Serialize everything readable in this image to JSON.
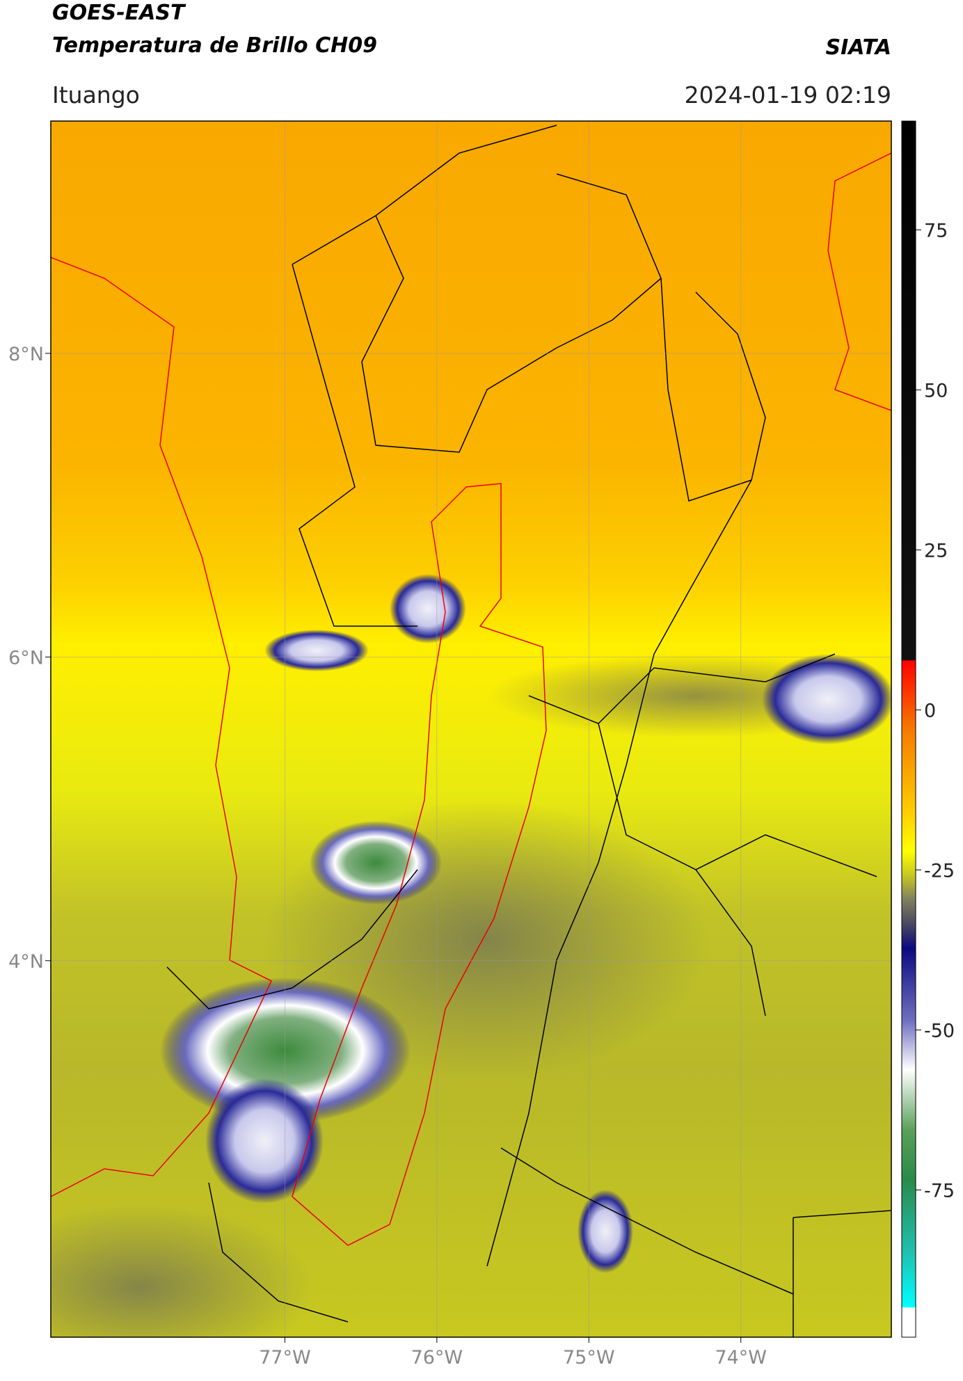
{
  "header": {
    "title": "GOES-EAST",
    "subtitle": "Temperatura de Brillo CH09",
    "source": "SIATA",
    "location": "Ituango",
    "datetime": "2024-01-19 02:19"
  },
  "map": {
    "lon_range": [
      -78.54,
      -73.01
    ],
    "lat_range": [
      1.52,
      9.53
    ],
    "lon_ticks": [
      {
        "value": -77,
        "label": "77°W"
      },
      {
        "value": -76,
        "label": "76°W"
      },
      {
        "value": -75,
        "label": "75°W"
      },
      {
        "value": -74,
        "label": "74°W"
      }
    ],
    "lat_ticks": [
      {
        "value": 8,
        "label": "8°N"
      },
      {
        "value": 6,
        "label": "6°N"
      },
      {
        "value": 4,
        "label": "4°N"
      }
    ],
    "grid": true
  },
  "colorbar": {
    "range": [
      -98,
      92
    ],
    "ticks": [
      75,
      50,
      25,
      0,
      -25,
      -50,
      -75
    ]
  }
}
